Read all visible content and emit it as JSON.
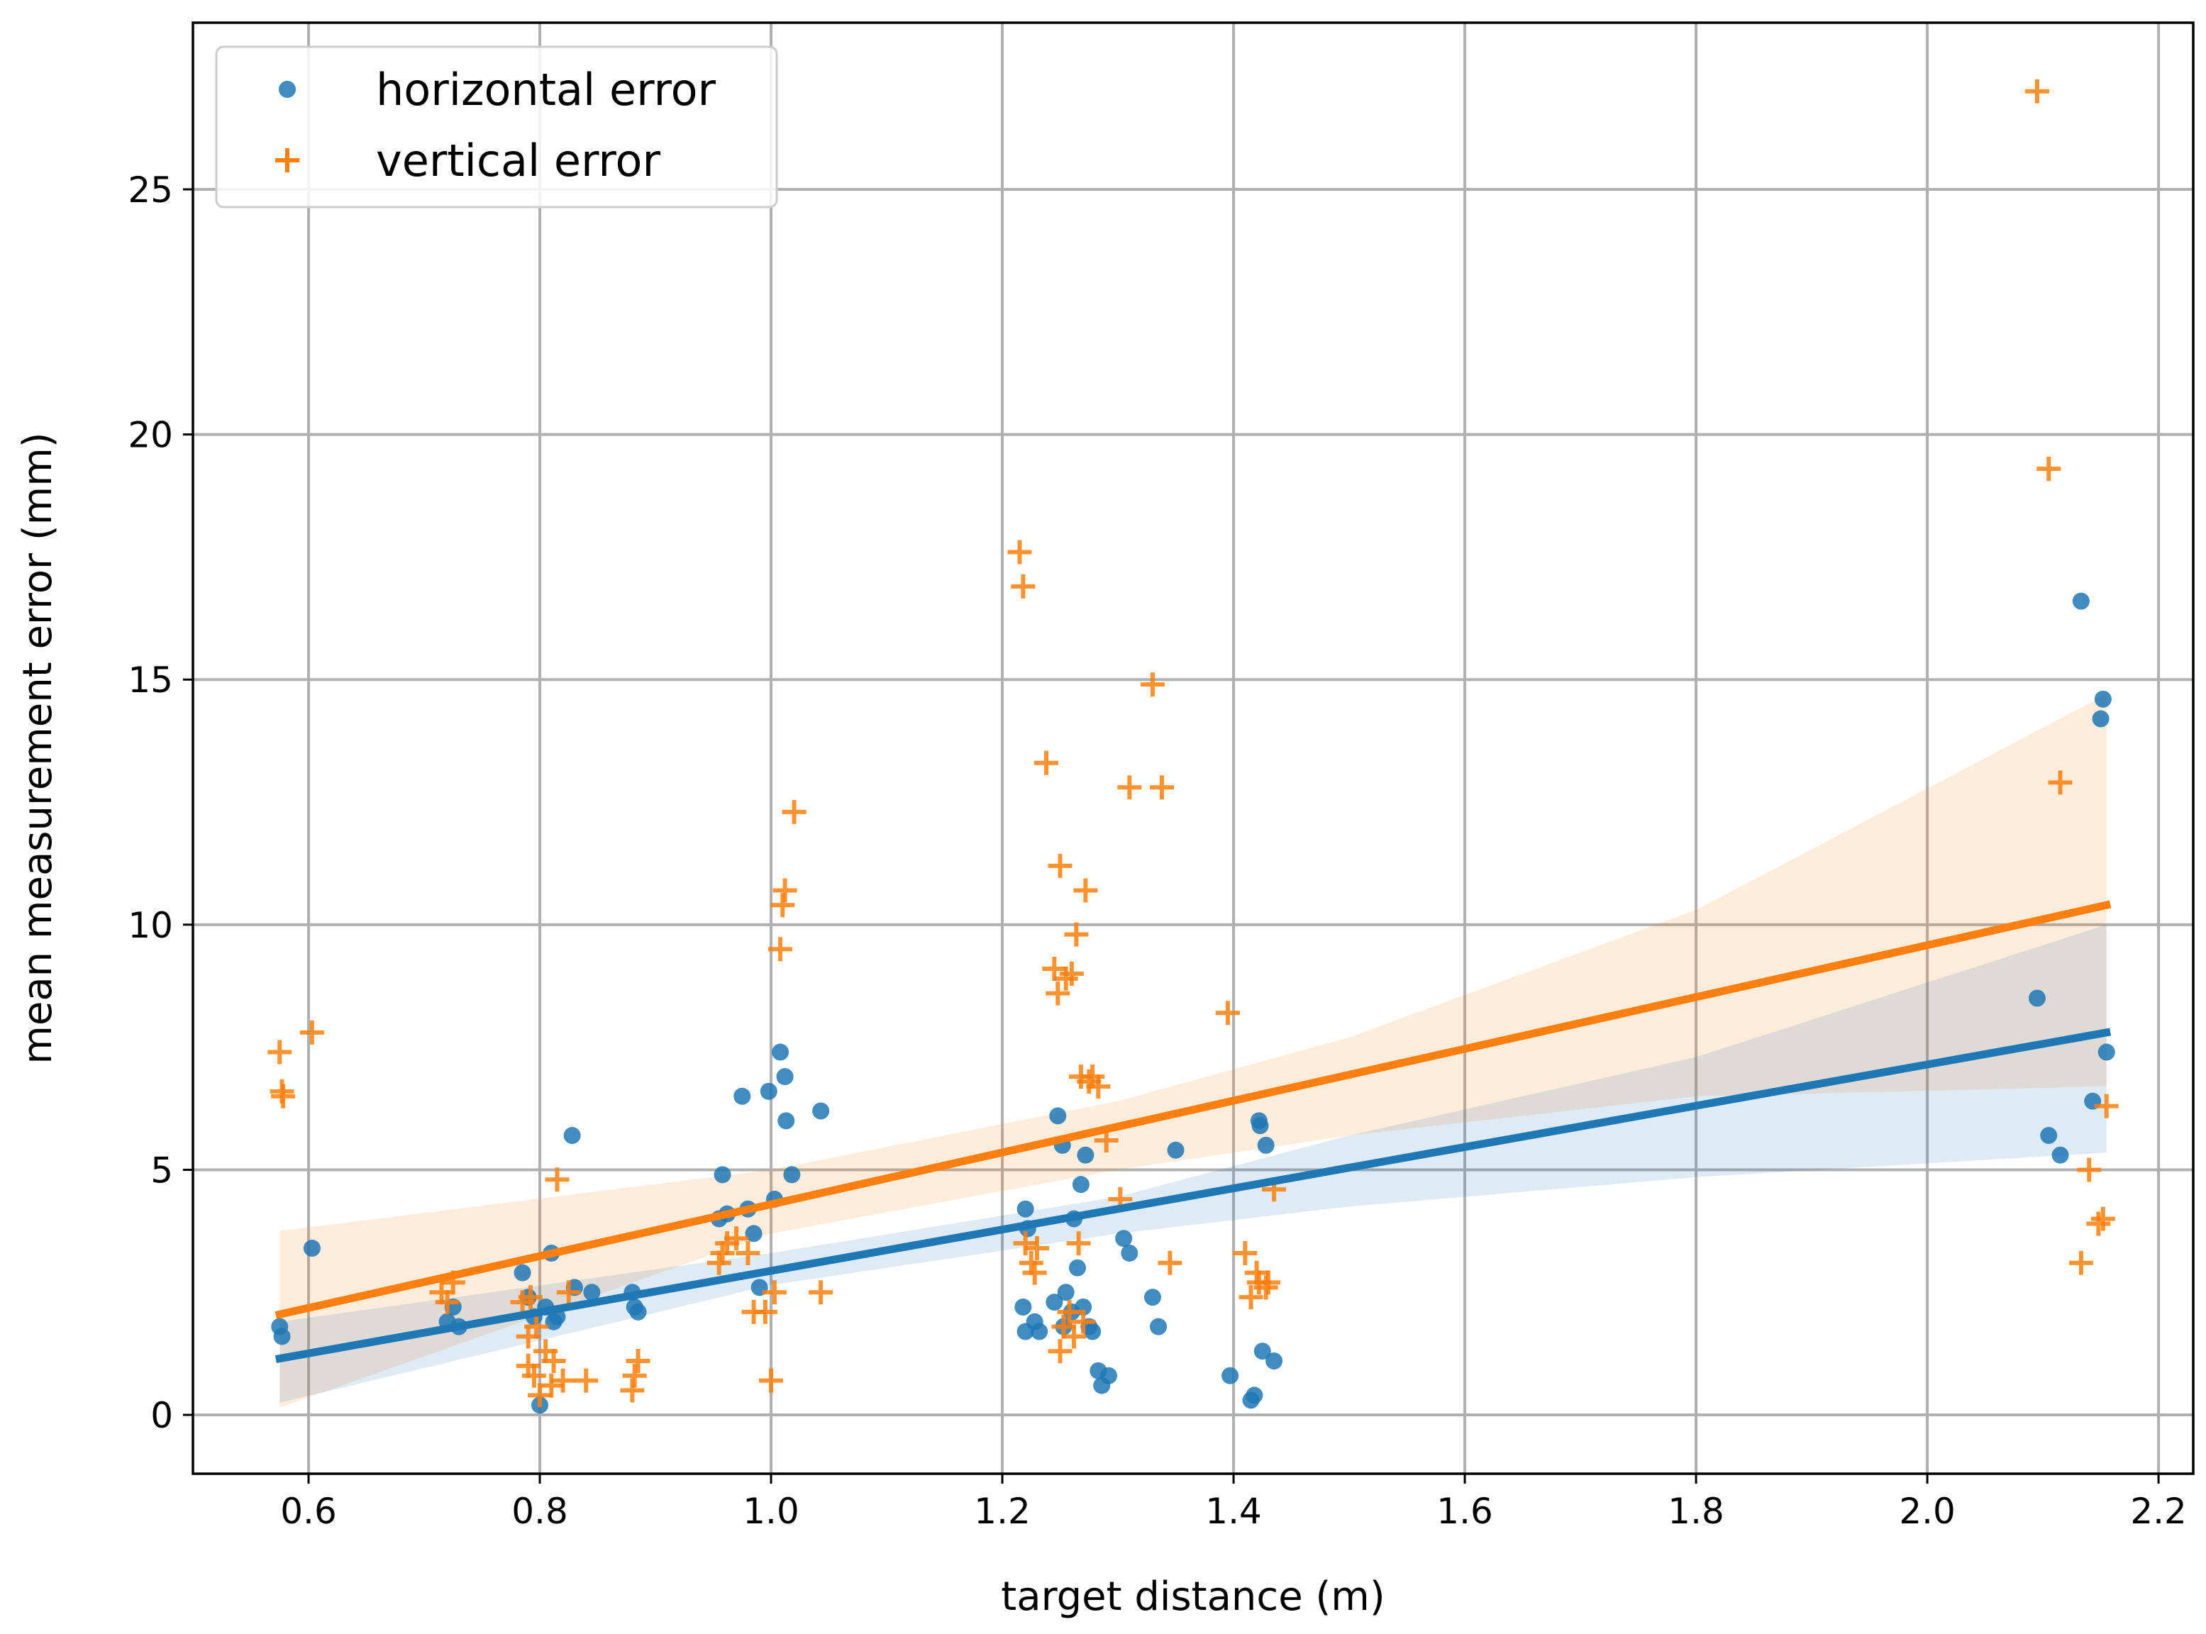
{
  "chart_data": {
    "type": "scatter",
    "title": "",
    "xlabel": "target distance (m)",
    "ylabel": "mean measurement error (mm)",
    "xlim": [
      0.5,
      2.23
    ],
    "ylim": [
      -1.2,
      28.4
    ],
    "xticks": [
      0.6,
      0.8,
      1.0,
      1.2,
      1.4,
      1.6,
      1.8,
      2.0,
      2.2
    ],
    "xtick_labels": [
      "0.6",
      "0.8",
      "1.0",
      "1.2",
      "1.4",
      "1.6",
      "1.8",
      "2.0",
      "2.2"
    ],
    "yticks": [
      0,
      5,
      10,
      15,
      20,
      25
    ],
    "ytick_labels": [
      "0",
      "5",
      "10",
      "15",
      "20",
      "25"
    ],
    "grid": true,
    "legend_position": "top-left",
    "series": [
      {
        "name": "horizontal error",
        "marker": "circle",
        "color": "#1f77b4",
        "points": [
          [
            0.575,
            1.8
          ],
          [
            0.577,
            1.6
          ],
          [
            0.603,
            3.4
          ],
          [
            0.72,
            1.9
          ],
          [
            0.725,
            2.2
          ],
          [
            0.73,
            1.8
          ],
          [
            0.785,
            2.9
          ],
          [
            0.79,
            2.4
          ],
          [
            0.795,
            2.0
          ],
          [
            0.8,
            0.2
          ],
          [
            0.805,
            2.2
          ],
          [
            0.81,
            3.3
          ],
          [
            0.812,
            1.9
          ],
          [
            0.815,
            2.0
          ],
          [
            0.828,
            5.7
          ],
          [
            0.83,
            2.6
          ],
          [
            0.845,
            2.5
          ],
          [
            0.88,
            2.5
          ],
          [
            0.882,
            2.2
          ],
          [
            0.885,
            2.1
          ],
          [
            0.955,
            4.0
          ],
          [
            0.958,
            4.9
          ],
          [
            0.962,
            4.1
          ],
          [
            0.975,
            6.5
          ],
          [
            0.98,
            4.2
          ],
          [
            0.985,
            3.7
          ],
          [
            0.99,
            2.6
          ],
          [
            0.998,
            6.6
          ],
          [
            1.003,
            4.4
          ],
          [
            1.008,
            7.4
          ],
          [
            1.012,
            6.9
          ],
          [
            1.013,
            6.0
          ],
          [
            1.018,
            4.9
          ],
          [
            1.043,
            6.2
          ],
          [
            1.218,
            2.2
          ],
          [
            1.22,
            1.7
          ],
          [
            1.22,
            4.2
          ],
          [
            1.222,
            3.8
          ],
          [
            1.228,
            1.9
          ],
          [
            1.232,
            1.7
          ],
          [
            1.245,
            2.3
          ],
          [
            1.248,
            6.1
          ],
          [
            1.252,
            5.5
          ],
          [
            1.253,
            1.8
          ],
          [
            1.255,
            2.5
          ],
          [
            1.26,
            2.1
          ],
          [
            1.262,
            4.0
          ],
          [
            1.265,
            3.0
          ],
          [
            1.268,
            4.7
          ],
          [
            1.27,
            2.2
          ],
          [
            1.272,
            5.3
          ],
          [
            1.275,
            1.8
          ],
          [
            1.278,
            1.7
          ],
          [
            1.283,
            0.9
          ],
          [
            1.286,
            0.6
          ],
          [
            1.292,
            0.8
          ],
          [
            1.305,
            3.6
          ],
          [
            1.31,
            3.3
          ],
          [
            1.33,
            2.4
          ],
          [
            1.335,
            1.8
          ],
          [
            1.35,
            5.4
          ],
          [
            1.397,
            0.8
          ],
          [
            1.415,
            0.3
          ],
          [
            1.418,
            0.4
          ],
          [
            1.422,
            6.0
          ],
          [
            1.423,
            5.9
          ],
          [
            1.425,
            1.3
          ],
          [
            1.428,
            5.5
          ],
          [
            1.435,
            1.1
          ],
          [
            2.095,
            8.5
          ],
          [
            2.105,
            5.7
          ],
          [
            2.115,
            5.3
          ],
          [
            2.133,
            16.6
          ],
          [
            2.143,
            6.4
          ],
          [
            2.15,
            14.2
          ],
          [
            2.152,
            14.6
          ],
          [
            2.155,
            7.4
          ]
        ],
        "fit_line": {
          "x": [
            0.575,
            2.155
          ],
          "y": [
            1.15,
            7.8
          ]
        },
        "ci_band": {
          "x": [
            0.575,
            1.0,
            1.3,
            1.5,
            1.8,
            2.155
          ],
          "lower": [
            0.25,
            2.65,
            3.7,
            4.25,
            4.85,
            5.35
          ],
          "upper": [
            1.9,
            3.3,
            4.45,
            5.7,
            7.3,
            10.0
          ]
        }
      },
      {
        "name": "vertical error",
        "marker": "plus",
        "color": "#ff7f0e",
        "points": [
          [
            0.575,
            7.4
          ],
          [
            0.577,
            6.6
          ],
          [
            0.578,
            6.5
          ],
          [
            0.603,
            7.8
          ],
          [
            0.715,
            2.5
          ],
          [
            0.72,
            2.3
          ],
          [
            0.725,
            2.7
          ],
          [
            0.785,
            2.3
          ],
          [
            0.79,
            1.0
          ],
          [
            0.79,
            1.6
          ],
          [
            0.792,
            2.4
          ],
          [
            0.795,
            0.8
          ],
          [
            0.797,
            1.8
          ],
          [
            0.8,
            0.4
          ],
          [
            0.805,
            1.3
          ],
          [
            0.81,
            0.6
          ],
          [
            0.812,
            1.1
          ],
          [
            0.815,
            4.8
          ],
          [
            0.82,
            0.7
          ],
          [
            0.825,
            2.5
          ],
          [
            0.84,
            0.7
          ],
          [
            0.88,
            0.5
          ],
          [
            0.882,
            0.8
          ],
          [
            0.885,
            1.1
          ],
          [
            0.955,
            3.1
          ],
          [
            0.958,
            3.3
          ],
          [
            0.962,
            3.5
          ],
          [
            0.97,
            3.6
          ],
          [
            0.98,
            3.3
          ],
          [
            0.985,
            2.1
          ],
          [
            0.995,
            2.1
          ],
          [
            1.0,
            0.7
          ],
          [
            1.003,
            2.5
          ],
          [
            1.008,
            9.5
          ],
          [
            1.01,
            10.4
          ],
          [
            1.012,
            10.7
          ],
          [
            1.02,
            12.3
          ],
          [
            1.043,
            2.5
          ],
          [
            1.215,
            17.6
          ],
          [
            1.218,
            16.9
          ],
          [
            1.22,
            3.5
          ],
          [
            1.225,
            3.1
          ],
          [
            1.228,
            2.9
          ],
          [
            1.23,
            3.4
          ],
          [
            1.238,
            13.3
          ],
          [
            1.245,
            9.1
          ],
          [
            1.248,
            8.6
          ],
          [
            1.25,
            1.3
          ],
          [
            1.25,
            11.2
          ],
          [
            1.253,
            1.8
          ],
          [
            1.255,
            8.9
          ],
          [
            1.258,
            2.1
          ],
          [
            1.26,
            9.0
          ],
          [
            1.262,
            1.6
          ],
          [
            1.264,
            9.8
          ],
          [
            1.266,
            3.5
          ],
          [
            1.268,
            6.9
          ],
          [
            1.27,
            1.9
          ],
          [
            1.272,
            10.7
          ],
          [
            1.275,
            6.8
          ],
          [
            1.278,
            6.9
          ],
          [
            1.283,
            6.7
          ],
          [
            1.29,
            5.6
          ],
          [
            1.302,
            4.4
          ],
          [
            1.31,
            12.8
          ],
          [
            1.33,
            14.9
          ],
          [
            1.338,
            12.8
          ],
          [
            1.345,
            3.1
          ],
          [
            1.395,
            8.2
          ],
          [
            1.41,
            3.3
          ],
          [
            1.415,
            2.4
          ],
          [
            1.42,
            2.9
          ],
          [
            1.422,
            2.7
          ],
          [
            1.428,
            2.6
          ],
          [
            1.43,
            2.7
          ],
          [
            1.435,
            4.6
          ],
          [
            2.095,
            27.0
          ],
          [
            2.105,
            19.3
          ],
          [
            2.115,
            12.9
          ],
          [
            2.133,
            3.1
          ],
          [
            2.14,
            5.0
          ],
          [
            2.148,
            3.9
          ],
          [
            2.152,
            4.0
          ],
          [
            2.155,
            6.3
          ]
        ],
        "fit_line": {
          "x": [
            0.575,
            2.155
          ],
          "y": [
            2.05,
            10.4
          ]
        },
        "ci_band": {
          "x": [
            0.575,
            1.0,
            1.3,
            1.5,
            1.8,
            2.155
          ],
          "lower": [
            0.15,
            3.7,
            5.0,
            5.7,
            6.5,
            6.7
          ],
          "upper": [
            3.75,
            5.0,
            6.4,
            7.7,
            10.3,
            14.7
          ]
        }
      }
    ]
  }
}
